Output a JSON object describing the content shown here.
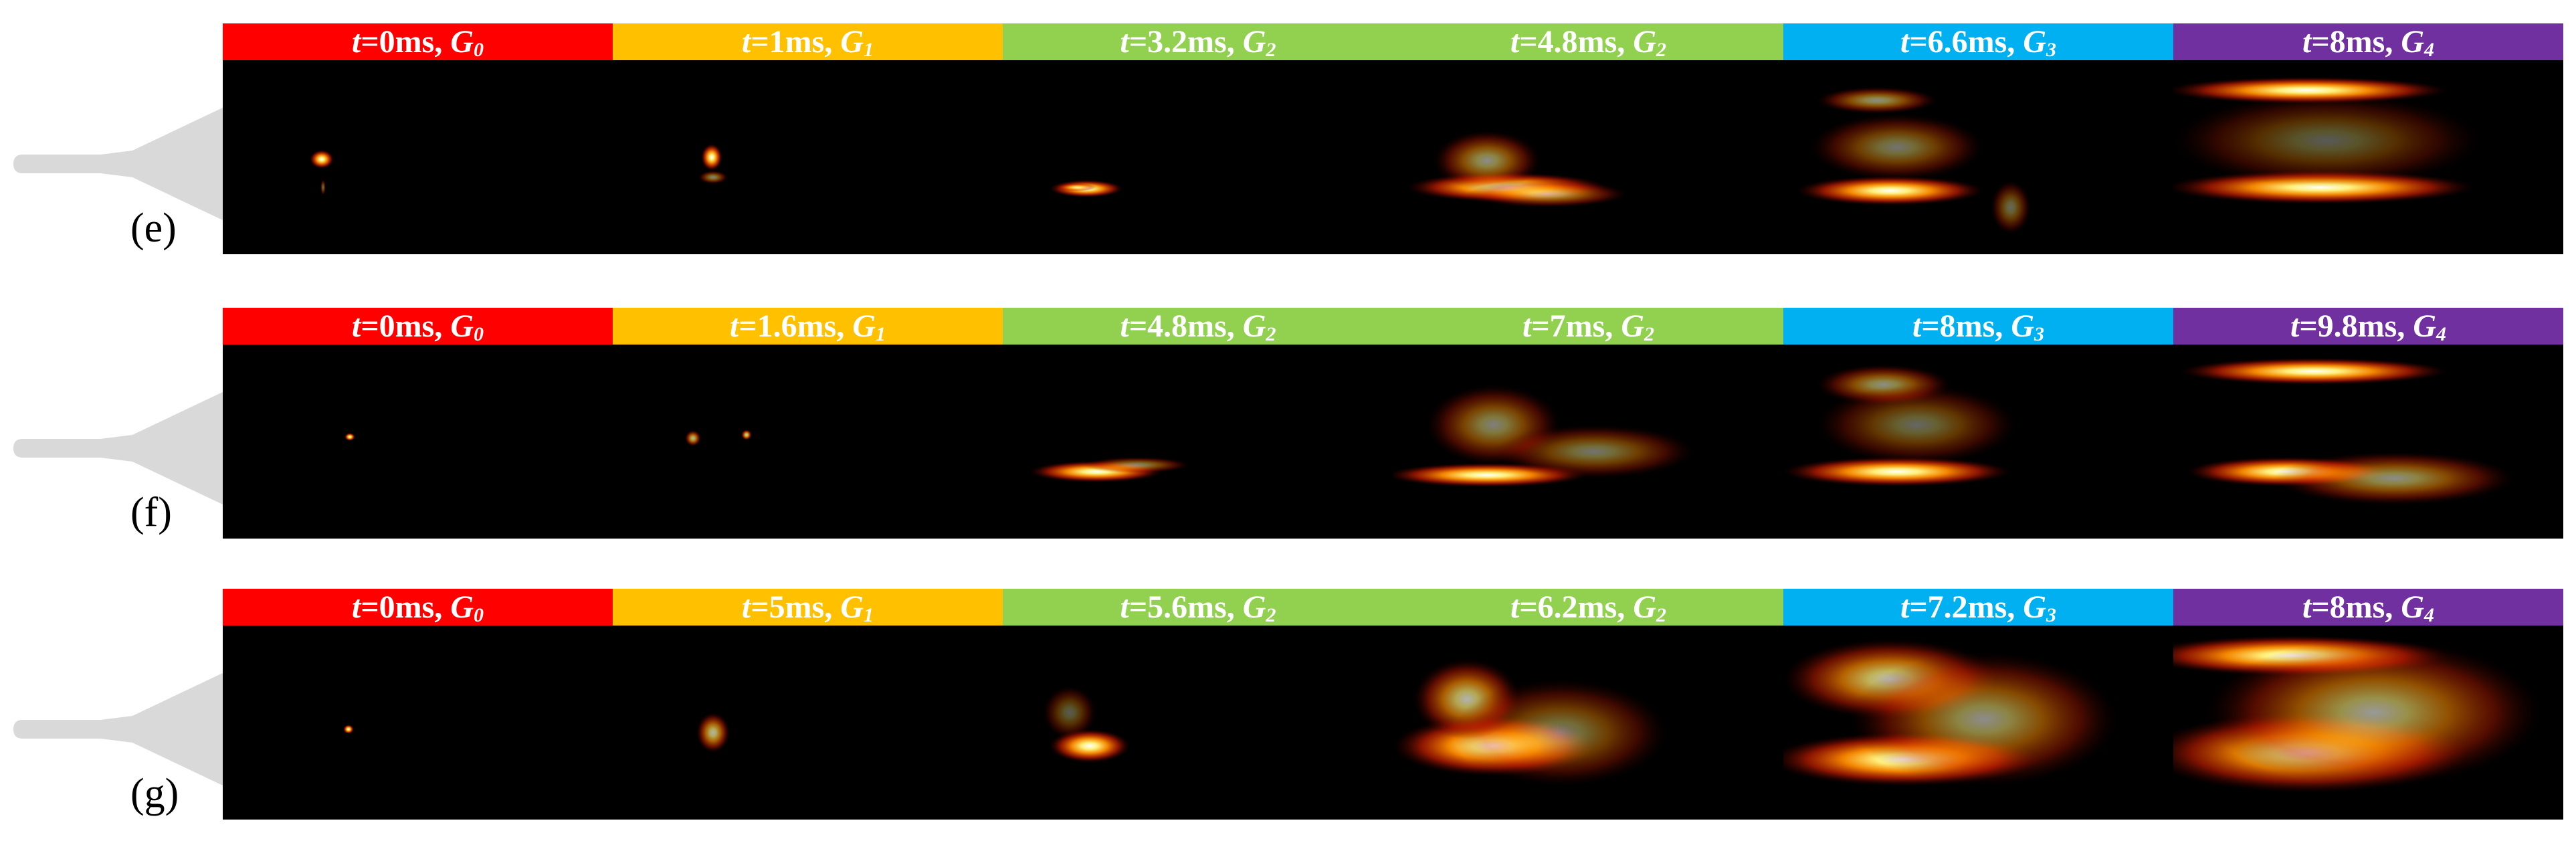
{
  "panels": [
    {
      "label": "(e)",
      "frames": [
        {
          "time": "0ms",
          "stage": "G",
          "sub": "0",
          "color": "#ff0000"
        },
        {
          "time": "1ms",
          "stage": "G",
          "sub": "1",
          "color": "#ffc000"
        },
        {
          "time": "3.2ms",
          "stage": "G",
          "sub": "2",
          "color": "#92d050"
        },
        {
          "time": "4.8ms",
          "stage": "G",
          "sub": "2",
          "color": "#92d050"
        },
        {
          "time": "6.6ms",
          "stage": "G",
          "sub": "3",
          "color": "#00b0f0"
        },
        {
          "time": "8ms",
          "stage": "G",
          "sub": "4",
          "color": "#7030a0"
        }
      ]
    },
    {
      "label": "(f)",
      "frames": [
        {
          "time": "0ms",
          "stage": "G",
          "sub": "0",
          "color": "#ff0000"
        },
        {
          "time": "1.6ms",
          "stage": "G",
          "sub": "1",
          "color": "#ffc000"
        },
        {
          "time": "4.8ms",
          "stage": "G",
          "sub": "2",
          "color": "#92d050"
        },
        {
          "time": "7ms",
          "stage": "G",
          "sub": "2",
          "color": "#92d050"
        },
        {
          "time": "8ms",
          "stage": "G",
          "sub": "3",
          "color": "#00b0f0"
        },
        {
          "time": "9.8ms",
          "stage": "G",
          "sub": "4",
          "color": "#7030a0"
        }
      ]
    },
    {
      "label": "(g)",
      "frames": [
        {
          "time": "0ms",
          "stage": "G",
          "sub": "0",
          "color": "#ff0000"
        },
        {
          "time": "5ms",
          "stage": "G",
          "sub": "1",
          "color": "#ffc000"
        },
        {
          "time": "5.6ms",
          "stage": "G",
          "sub": "2",
          "color": "#92d050"
        },
        {
          "time": "6.2ms",
          "stage": "G",
          "sub": "2",
          "color": "#92d050"
        },
        {
          "time": "7.2ms",
          "stage": "G",
          "sub": "3",
          "color": "#00b0f0"
        },
        {
          "time": "8ms",
          "stage": "G",
          "sub": "4",
          "color": "#7030a0"
        }
      ]
    }
  ],
  "time_prefix": "t",
  "colors": {
    "background": "#000000",
    "nozzle": "#d9d9d9"
  }
}
